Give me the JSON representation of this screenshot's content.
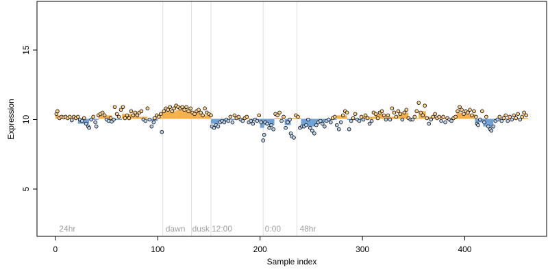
{
  "chart_data": {
    "type": "scatter",
    "title": "",
    "xlabel": "Sample index",
    "ylabel": "Expression",
    "xlim": [
      -18,
      480
    ],
    "ylim": [
      1.6,
      18.5
    ],
    "x_ticks": [
      0,
      100,
      200,
      300,
      400
    ],
    "y_ticks": [
      5,
      10,
      15
    ],
    "grid": false,
    "legend": "none",
    "colors": {
      "up_segment": "#f5b04a",
      "down_segment": "#6fa3d8",
      "point_edge": "#000000",
      "divider": "#dddddd",
      "annotation": "#a0a0a0"
    },
    "dividers": [
      105,
      133,
      152,
      203,
      236
    ],
    "annotations": [
      {
        "x": 3,
        "text": "24hr"
      },
      {
        "x": 107,
        "text": "dawn"
      },
      {
        "x": 133,
        "text": "dusk"
      },
      {
        "x": 152,
        "text": "12:00"
      },
      {
        "x": 204,
        "text": "0:00"
      },
      {
        "x": 238,
        "text": "48hr"
      }
    ],
    "baseline": 10.05,
    "segments": [
      {
        "x0": 0,
        "x1": 10,
        "y": 10.3
      },
      {
        "x0": 10,
        "x1": 22,
        "y": 10.1
      },
      {
        "x0": 22,
        "x1": 33,
        "y": 9.7
      },
      {
        "x0": 33,
        "x1": 42,
        "y": 10.0
      },
      {
        "x0": 42,
        "x1": 55,
        "y": 10.3
      },
      {
        "x0": 55,
        "x1": 65,
        "y": 10.0
      },
      {
        "x0": 65,
        "x1": 78,
        "y": 10.4
      },
      {
        "x0": 78,
        "x1": 90,
        "y": 10.2
      },
      {
        "x0": 90,
        "x1": 100,
        "y": 9.9
      },
      {
        "x0": 100,
        "x1": 104,
        "y": 10.2
      },
      {
        "x0": 104,
        "x1": 118,
        "y": 10.6
      },
      {
        "x0": 118,
        "x1": 133,
        "y": 10.7
      },
      {
        "x0": 133,
        "x1": 142,
        "y": 10.5
      },
      {
        "x0": 142,
        "x1": 152,
        "y": 10.3
      },
      {
        "x0": 152,
        "x1": 163,
        "y": 9.7
      },
      {
        "x0": 163,
        "x1": 176,
        "y": 10.0
      },
      {
        "x0": 176,
        "x1": 190,
        "y": 10.1
      },
      {
        "x0": 190,
        "x1": 200,
        "y": 9.9
      },
      {
        "x0": 200,
        "x1": 204,
        "y": 9.4
      },
      {
        "x0": 204,
        "x1": 214,
        "y": 9.6
      },
      {
        "x0": 214,
        "x1": 224,
        "y": 10.1
      },
      {
        "x0": 224,
        "x1": 230,
        "y": 9.6
      },
      {
        "x0": 230,
        "x1": 240,
        "y": 10.1
      },
      {
        "x0": 240,
        "x1": 255,
        "y": 9.5
      },
      {
        "x0": 255,
        "x1": 264,
        "y": 9.8
      },
      {
        "x0": 264,
        "x1": 275,
        "y": 10.0
      },
      {
        "x0": 275,
        "x1": 285,
        "y": 10.3
      },
      {
        "x0": 285,
        "x1": 300,
        "y": 10.0
      },
      {
        "x0": 300,
        "x1": 312,
        "y": 10.2
      },
      {
        "x0": 312,
        "x1": 322,
        "y": 10.4
      },
      {
        "x0": 322,
        "x1": 335,
        "y": 10.2
      },
      {
        "x0": 335,
        "x1": 345,
        "y": 10.5
      },
      {
        "x0": 345,
        "x1": 355,
        "y": 10.1
      },
      {
        "x0": 355,
        "x1": 362,
        "y": 10.6
      },
      {
        "x0": 362,
        "x1": 378,
        "y": 10.2
      },
      {
        "x0": 378,
        "x1": 392,
        "y": 10.1
      },
      {
        "x0": 392,
        "x1": 400,
        "y": 10.5
      },
      {
        "x0": 400,
        "x1": 410,
        "y": 10.4
      },
      {
        "x0": 410,
        "x1": 418,
        "y": 9.8
      },
      {
        "x0": 418,
        "x1": 428,
        "y": 9.5
      },
      {
        "x0": 428,
        "x1": 440,
        "y": 10.0
      },
      {
        "x0": 440,
        "x1": 450,
        "y": 10.1
      },
      {
        "x0": 450,
        "x1": 462,
        "y": 10.1
      }
    ],
    "points": [
      {
        "x": 1,
        "y": 10.4
      },
      {
        "x": 2,
        "y": 10.6
      },
      {
        "x": 4,
        "y": 10.1
      },
      {
        "x": 6,
        "y": 10.2
      },
      {
        "x": 8,
        "y": 10.15
      },
      {
        "x": 10,
        "y": 10.2
      },
      {
        "x": 12,
        "y": 10.1
      },
      {
        "x": 14,
        "y": 10.2
      },
      {
        "x": 16,
        "y": 9.95
      },
      {
        "x": 18,
        "y": 10.2
      },
      {
        "x": 20,
        "y": 10.1
      },
      {
        "x": 22,
        "y": 10.2
      },
      {
        "x": 24,
        "y": 10.0
      },
      {
        "x": 26,
        "y": 9.9
      },
      {
        "x": 28,
        "y": 10.1
      },
      {
        "x": 30,
        "y": 9.7
      },
      {
        "x": 32,
        "y": 9.5
      },
      {
        "x": 33,
        "y": 9.4
      },
      {
        "x": 35,
        "y": 10.0
      },
      {
        "x": 37,
        "y": 10.2
      },
      {
        "x": 39,
        "y": 9.8
      },
      {
        "x": 40,
        "y": 9.5
      },
      {
        "x": 42,
        "y": 10.3
      },
      {
        "x": 44,
        "y": 10.4
      },
      {
        "x": 46,
        "y": 10.5
      },
      {
        "x": 48,
        "y": 10.3
      },
      {
        "x": 50,
        "y": 10.0
      },
      {
        "x": 52,
        "y": 9.9
      },
      {
        "x": 54,
        "y": 10.1
      },
      {
        "x": 55,
        "y": 9.85
      },
      {
        "x": 57,
        "y": 10.0
      },
      {
        "x": 58,
        "y": 10.9
      },
      {
        "x": 60,
        "y": 10.4
      },
      {
        "x": 62,
        "y": 10.2
      },
      {
        "x": 64,
        "y": 10.7
      },
      {
        "x": 66,
        "y": 10.9
      },
      {
        "x": 68,
        "y": 10.1
      },
      {
        "x": 70,
        "y": 10.3
      },
      {
        "x": 72,
        "y": 10.1
      },
      {
        "x": 74,
        "y": 10.6
      },
      {
        "x": 76,
        "y": 10.3
      },
      {
        "x": 78,
        "y": 10.5
      },
      {
        "x": 80,
        "y": 10.3
      },
      {
        "x": 82,
        "y": 10.5
      },
      {
        "x": 84,
        "y": 10.6
      },
      {
        "x": 86,
        "y": 10.0
      },
      {
        "x": 88,
        "y": 9.9
      },
      {
        "x": 90,
        "y": 10.8
      },
      {
        "x": 92,
        "y": 10.0
      },
      {
        "x": 94,
        "y": 9.5
      },
      {
        "x": 96,
        "y": 9.8
      },
      {
        "x": 97,
        "y": 10.1
      },
      {
        "x": 99,
        "y": 10.3
      },
      {
        "x": 101,
        "y": 10.2
      },
      {
        "x": 103,
        "y": 10.4
      },
      {
        "x": 104,
        "y": 9.1
      },
      {
        "x": 106,
        "y": 10.6
      },
      {
        "x": 108,
        "y": 10.8
      },
      {
        "x": 110,
        "y": 10.7
      },
      {
        "x": 112,
        "y": 10.9
      },
      {
        "x": 114,
        "y": 10.6
      },
      {
        "x": 116,
        "y": 10.8
      },
      {
        "x": 118,
        "y": 11.0
      },
      {
        "x": 120,
        "y": 10.9
      },
      {
        "x": 122,
        "y": 10.8
      },
      {
        "x": 124,
        "y": 10.9
      },
      {
        "x": 126,
        "y": 10.7
      },
      {
        "x": 128,
        "y": 10.9
      },
      {
        "x": 130,
        "y": 10.6
      },
      {
        "x": 132,
        "y": 10.8
      },
      {
        "x": 134,
        "y": 10.5
      },
      {
        "x": 136,
        "y": 10.4
      },
      {
        "x": 138,
        "y": 10.6
      },
      {
        "x": 140,
        "y": 10.7
      },
      {
        "x": 142,
        "y": 10.5
      },
      {
        "x": 144,
        "y": 10.3
      },
      {
        "x": 146,
        "y": 10.8
      },
      {
        "x": 148,
        "y": 10.5
      },
      {
        "x": 150,
        "y": 10.4
      },
      {
        "x": 152,
        "y": 10.3
      },
      {
        "x": 153,
        "y": 9.5
      },
      {
        "x": 155,
        "y": 9.4
      },
      {
        "x": 157,
        "y": 9.6
      },
      {
        "x": 159,
        "y": 9.5
      },
      {
        "x": 161,
        "y": 9.8
      },
      {
        "x": 163,
        "y": 9.9
      },
      {
        "x": 165,
        "y": 9.8
      },
      {
        "x": 167,
        "y": 10.0
      },
      {
        "x": 169,
        "y": 9.9
      },
      {
        "x": 171,
        "y": 10.2
      },
      {
        "x": 173,
        "y": 9.8
      },
      {
        "x": 175,
        "y": 10.3
      },
      {
        "x": 177,
        "y": 10.1
      },
      {
        "x": 179,
        "y": 10.2
      },
      {
        "x": 181,
        "y": 10.0
      },
      {
        "x": 183,
        "y": 9.9
      },
      {
        "x": 185,
        "y": 10.1
      },
      {
        "x": 187,
        "y": 10.2
      },
      {
        "x": 189,
        "y": 9.8
      },
      {
        "x": 191,
        "y": 9.9
      },
      {
        "x": 193,
        "y": 9.7
      },
      {
        "x": 195,
        "y": 10.0
      },
      {
        "x": 197,
        "y": 9.9
      },
      {
        "x": 199,
        "y": 10.3
      },
      {
        "x": 201,
        "y": 9.8
      },
      {
        "x": 203,
        "y": 8.5
      },
      {
        "x": 204,
        "y": 8.9
      },
      {
        "x": 205,
        "y": 9.8
      },
      {
        "x": 207,
        "y": 9.7
      },
      {
        "x": 209,
        "y": 9.4
      },
      {
        "x": 211,
        "y": 9.6
      },
      {
        "x": 213,
        "y": 9.3
      },
      {
        "x": 215,
        "y": 10.4
      },
      {
        "x": 217,
        "y": 10.3
      },
      {
        "x": 219,
        "y": 10.5
      },
      {
        "x": 221,
        "y": 9.9
      },
      {
        "x": 223,
        "y": 10.2
      },
      {
        "x": 225,
        "y": 9.4
      },
      {
        "x": 227,
        "y": 9.8
      },
      {
        "x": 229,
        "y": 10.0
      },
      {
        "x": 230,
        "y": 9.0
      },
      {
        "x": 231,
        "y": 8.8
      },
      {
        "x": 233,
        "y": 8.7
      },
      {
        "x": 235,
        "y": 10.3
      },
      {
        "x": 237,
        "y": 10.2
      },
      {
        "x": 239,
        "y": 9.4
      },
      {
        "x": 241,
        "y": 9.5
      },
      {
        "x": 243,
        "y": 9.5
      },
      {
        "x": 245,
        "y": 9.6
      },
      {
        "x": 247,
        "y": 10.0
      },
      {
        "x": 249,
        "y": 9.4
      },
      {
        "x": 251,
        "y": 9.2
      },
      {
        "x": 253,
        "y": 9.0
      },
      {
        "x": 255,
        "y": 9.6
      },
      {
        "x": 257,
        "y": 9.8
      },
      {
        "x": 259,
        "y": 9.9
      },
      {
        "x": 261,
        "y": 9.7
      },
      {
        "x": 263,
        "y": 9.5
      },
      {
        "x": 265,
        "y": 9.9
      },
      {
        "x": 267,
        "y": 10.0
      },
      {
        "x": 269,
        "y": 9.8
      },
      {
        "x": 271,
        "y": 10.1
      },
      {
        "x": 273,
        "y": 10.2
      },
      {
        "x": 275,
        "y": 9.6
      },
      {
        "x": 277,
        "y": 9.3
      },
      {
        "x": 279,
        "y": 9.8
      },
      {
        "x": 281,
        "y": 10.3
      },
      {
        "x": 283,
        "y": 10.6
      },
      {
        "x": 285,
        "y": 10.5
      },
      {
        "x": 287,
        "y": 9.3
      },
      {
        "x": 289,
        "y": 9.9
      },
      {
        "x": 291,
        "y": 10.1
      },
      {
        "x": 293,
        "y": 10.4
      },
      {
        "x": 295,
        "y": 10.0
      },
      {
        "x": 297,
        "y": 9.9
      },
      {
        "x": 299,
        "y": 10.2
      },
      {
        "x": 301,
        "y": 10.0
      },
      {
        "x": 303,
        "y": 10.3
      },
      {
        "x": 305,
        "y": 10.1
      },
      {
        "x": 307,
        "y": 9.7
      },
      {
        "x": 309,
        "y": 9.9
      },
      {
        "x": 311,
        "y": 10.5
      },
      {
        "x": 313,
        "y": 10.4
      },
      {
        "x": 315,
        "y": 10.1
      },
      {
        "x": 317,
        "y": 10.5
      },
      {
        "x": 319,
        "y": 10.6
      },
      {
        "x": 321,
        "y": 10.3
      },
      {
        "x": 323,
        "y": 10.0
      },
      {
        "x": 325,
        "y": 10.3
      },
      {
        "x": 327,
        "y": 10.0
      },
      {
        "x": 329,
        "y": 10.8
      },
      {
        "x": 331,
        "y": 10.5
      },
      {
        "x": 333,
        "y": 10.2
      },
      {
        "x": 335,
        "y": 10.6
      },
      {
        "x": 337,
        "y": 10.4
      },
      {
        "x": 339,
        "y": 10.0
      },
      {
        "x": 341,
        "y": 10.5
      },
      {
        "x": 343,
        "y": 10.7
      },
      {
        "x": 345,
        "y": 10.1
      },
      {
        "x": 347,
        "y": 10.0
      },
      {
        "x": 349,
        "y": 10.0
      },
      {
        "x": 351,
        "y": 10.2
      },
      {
        "x": 353,
        "y": 10.6
      },
      {
        "x": 355,
        "y": 11.2
      },
      {
        "x": 357,
        "y": 10.5
      },
      {
        "x": 359,
        "y": 10.3
      },
      {
        "x": 361,
        "y": 11.0
      },
      {
        "x": 363,
        "y": 10.1
      },
      {
        "x": 365,
        "y": 9.7
      },
      {
        "x": 367,
        "y": 10.0
      },
      {
        "x": 369,
        "y": 10.2
      },
      {
        "x": 371,
        "y": 10.4
      },
      {
        "x": 373,
        "y": 10.1
      },
      {
        "x": 375,
        "y": 10.2
      },
      {
        "x": 377,
        "y": 9.9
      },
      {
        "x": 379,
        "y": 10.2
      },
      {
        "x": 381,
        "y": 9.8
      },
      {
        "x": 383,
        "y": 10.1
      },
      {
        "x": 385,
        "y": 10.0
      },
      {
        "x": 387,
        "y": 9.9
      },
      {
        "x": 389,
        "y": 10.1
      },
      {
        "x": 391,
        "y": 10.2
      },
      {
        "x": 393,
        "y": 10.6
      },
      {
        "x": 395,
        "y": 10.9
      },
      {
        "x": 397,
        "y": 10.7
      },
      {
        "x": 399,
        "y": 10.4
      },
      {
        "x": 401,
        "y": 10.6
      },
      {
        "x": 403,
        "y": 10.5
      },
      {
        "x": 405,
        "y": 10.7
      },
      {
        "x": 407,
        "y": 10.3
      },
      {
        "x": 409,
        "y": 10.6
      },
      {
        "x": 411,
        "y": 10.2
      },
      {
        "x": 412,
        "y": 9.7
      },
      {
        "x": 413,
        "y": 9.6
      },
      {
        "x": 415,
        "y": 10.0
      },
      {
        "x": 417,
        "y": 10.6
      },
      {
        "x": 419,
        "y": 9.8
      },
      {
        "x": 421,
        "y": 10.2
      },
      {
        "x": 423,
        "y": 9.5
      },
      {
        "x": 425,
        "y": 9.3
      },
      {
        "x": 426,
        "y": 9.2
      },
      {
        "x": 428,
        "y": 9.5
      },
      {
        "x": 430,
        "y": 9.9
      },
      {
        "x": 432,
        "y": 10.0
      },
      {
        "x": 434,
        "y": 10.2
      },
      {
        "x": 436,
        "y": 9.9
      },
      {
        "x": 438,
        "y": 10.1
      },
      {
        "x": 440,
        "y": 10.3
      },
      {
        "x": 442,
        "y": 9.9
      },
      {
        "x": 444,
        "y": 10.2
      },
      {
        "x": 446,
        "y": 10.0
      },
      {
        "x": 448,
        "y": 10.3
      },
      {
        "x": 450,
        "y": 10.1
      },
      {
        "x": 452,
        "y": 10.4
      },
      {
        "x": 454,
        "y": 10.0
      },
      {
        "x": 456,
        "y": 10.2
      },
      {
        "x": 458,
        "y": 10.5
      },
      {
        "x": 460,
        "y": 10.3
      }
    ]
  }
}
